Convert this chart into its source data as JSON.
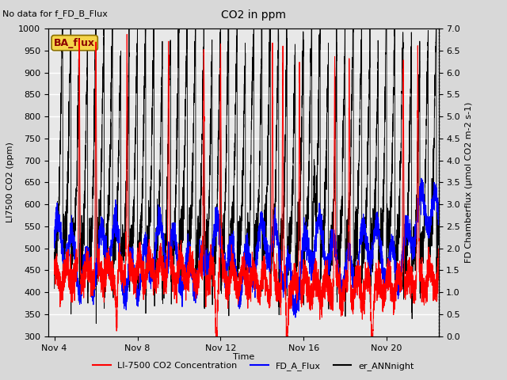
{
  "title": "CO2 in ppm",
  "top_left_text": "No data for f_FD_B_Flux",
  "box_label": "BA_flux",
  "xlabel": "Time",
  "ylabel_left": "LI7500 CO2 (ppm)",
  "ylabel_right": "FD Chamberflux (μmol CO2 m-2 s-1)",
  "ylim_left": [
    300,
    1000
  ],
  "ylim_right": [
    0.0,
    7.0
  ],
  "yticks_left": [
    300,
    350,
    400,
    450,
    500,
    550,
    600,
    650,
    700,
    750,
    800,
    850,
    900,
    950,
    1000
  ],
  "yticks_right": [
    0.0,
    0.5,
    1.0,
    1.5,
    2.0,
    2.5,
    3.0,
    3.5,
    4.0,
    4.5,
    5.0,
    5.5,
    6.0,
    6.5,
    7.0
  ],
  "xtick_labels": [
    "Nov 4",
    "Nov 8",
    "Nov 12",
    "Nov 16",
    "Nov 20"
  ],
  "xtick_positions": [
    0,
    4,
    8,
    12,
    16
  ],
  "xlim": [
    -0.3,
    18.5
  ],
  "background_color": "#d8d8d8",
  "plot_bg_color": "#e8e8e8",
  "grid_color": "#ffffff",
  "seed": 42,
  "n_points": 5000,
  "x_end": 18.5
}
